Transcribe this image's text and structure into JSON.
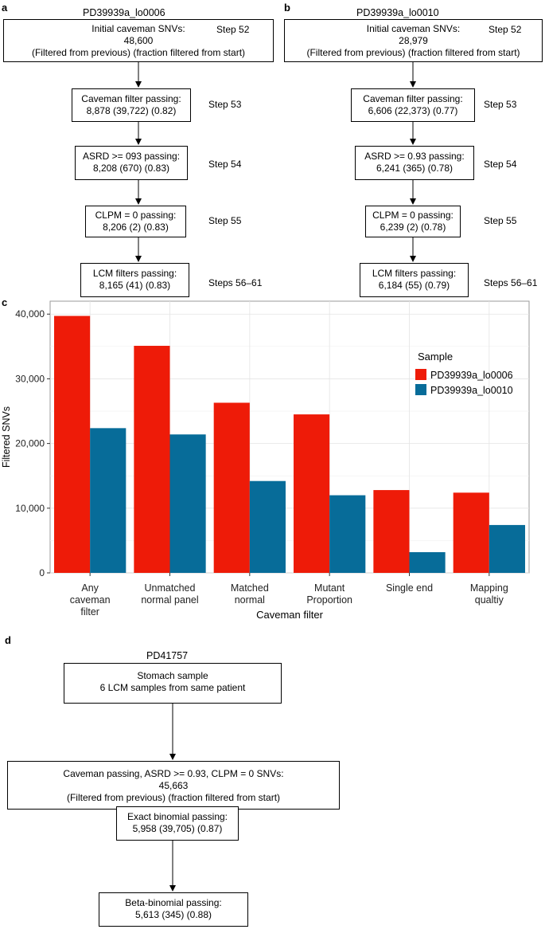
{
  "panel_a": {
    "letter": "a",
    "title": "PD39939a_lo0006",
    "top_box": {
      "line1": "Initial caveman SNVs:",
      "line2": "48,600",
      "line3": "(Filtered from previous) (fraction filtered from start)",
      "step": "Step 52"
    },
    "steps": [
      {
        "line1": "Caveman filter passing:",
        "line2": "8,878 (39,722) (0.82)",
        "step": "Step 53"
      },
      {
        "line1": "ASRD >= 093 passing:",
        "line2": "8,208 (670) (0.83)",
        "step": "Step 54"
      },
      {
        "line1": "CLPM = 0 passing:",
        "line2": "8,206 (2) (0.83)",
        "step": "Step 55"
      },
      {
        "line1": "LCM filters passing:",
        "line2": "8,165 (41) (0.83)",
        "step": "Steps 56–61"
      }
    ]
  },
  "panel_b": {
    "letter": "b",
    "title": "PD39939a_lo0010",
    "top_box": {
      "line1": "Initial caveman SNVs:",
      "line2": "28,979",
      "line3": "(Filtered from previous) (fraction filtered from start)",
      "step": "Step 52"
    },
    "steps": [
      {
        "line1": "Caveman filter passing:",
        "line2": "6,606 (22,373) (0.77)",
        "step": "Step 53"
      },
      {
        "line1": "ASRD >= 0.93 passing:",
        "line2": "6,241 (365) (0.78)",
        "step": "Step 54"
      },
      {
        "line1": "CLPM = 0 passing:",
        "line2": "6,239 (2) (0.78)",
        "step": "Step 55"
      },
      {
        "line1": "LCM filters passing:",
        "line2": "6,184 (55) (0.79)",
        "step": "Steps 56–61"
      }
    ]
  },
  "panel_c": {
    "letter": "c"
  },
  "chart_data": {
    "type": "bar",
    "title": "",
    "xlabel": "Caveman filter",
    "ylabel": "Filtered SNVs",
    "ylim": [
      0,
      42000
    ],
    "yticks": [
      0,
      10000,
      20000,
      30000,
      40000
    ],
    "ytick_labels": [
      "0",
      "10,000",
      "20,000",
      "30,000",
      "40,000"
    ],
    "categories": [
      [
        "Any",
        "caveman",
        "filter"
      ],
      [
        "Unmatched",
        "normal panel"
      ],
      [
        "Matched",
        "normal"
      ],
      [
        "Mutant",
        "Proportion"
      ],
      [
        "Single end"
      ],
      [
        "Mapping",
        "qualtiy"
      ]
    ],
    "legend_title": "Sample",
    "legend_position": "top-right",
    "series": [
      {
        "name": "PD39939a_lo0006",
        "color": "#ee1b08",
        "values": [
          39722,
          35100,
          26300,
          24500,
          12800,
          12400
        ]
      },
      {
        "name": "PD39939a_lo0010",
        "color": "#076c99",
        "values": [
          22373,
          21400,
          14200,
          12000,
          3200,
          7400
        ]
      }
    ]
  },
  "panel_d": {
    "letter": "d",
    "title": "PD41757",
    "box1": {
      "line1": "Stomach sample",
      "line2": "6 LCM samples from same patient"
    },
    "box2": {
      "line1": "Caveman passing, ASRD >= 0.93, CLPM = 0 SNVs:",
      "line2": "45,663",
      "line3": "(Filtered from previous) (fraction filtered from start)"
    },
    "box3": {
      "line1": "Exact binomial passing:",
      "line2": "5,958 (39,705) (0.87)"
    },
    "box4": {
      "line1": "Beta-binomial passing:",
      "line2": "5,613 (345) (0.88)"
    }
  }
}
